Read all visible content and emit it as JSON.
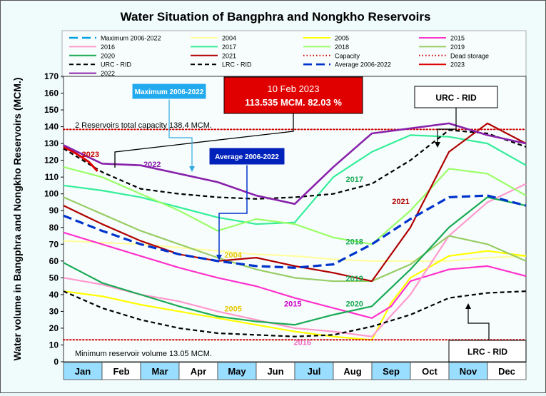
{
  "chart_data": {
    "type": "line",
    "title": "Water Situation of Bangphra and Nongkho Reservoirs",
    "xlabel": "",
    "ylabel": "Water volume in Bangphra and Nongkho Reservoirs (MCM.)",
    "ylim": [
      0,
      170
    ],
    "yticks": [
      0,
      10,
      20,
      30,
      40,
      50,
      60,
      70,
      80,
      90,
      100,
      110,
      120,
      130,
      140,
      150,
      160,
      170
    ],
    "categories": [
      "Jan",
      "Feb",
      "Mar",
      "Apr",
      "May",
      "Jun",
      "Jul",
      "Aug",
      "Sep",
      "Oct",
      "Nov",
      "Dec"
    ],
    "grid": false,
    "series": [
      {
        "name": "Maximum 2006-2022",
        "color": "#00a0e0",
        "style": "longdash",
        "legend_line": true,
        "x": [
          0
        ],
        "y": [
          0
        ]
      },
      {
        "name": "2004",
        "color": "#ffffa0",
        "style": "solid",
        "x": [
          0,
          1,
          2,
          3,
          4,
          5,
          6,
          7,
          8,
          9,
          10,
          11,
          12
        ],
        "y": [
          72,
          71,
          70,
          68,
          66,
          64,
          63,
          61,
          60,
          60,
          60,
          62,
          63
        ]
      },
      {
        "name": "2005",
        "color": "#ffff00",
        "style": "solid",
        "x": [
          0,
          1,
          2,
          3,
          4,
          5,
          6,
          7,
          8,
          8.5,
          9,
          10,
          11,
          12
        ],
        "y": [
          42,
          39,
          34,
          30,
          26,
          22,
          18,
          15,
          13,
          35,
          50,
          63,
          66,
          63
        ]
      },
      {
        "name": "2015",
        "color": "#ff33cc",
        "style": "solid",
        "x": [
          0,
          1,
          2,
          3,
          4,
          5,
          6,
          7,
          8,
          8.5,
          9,
          10,
          11,
          12
        ],
        "y": [
          77,
          70,
          63,
          56,
          50,
          45,
          38,
          32,
          26,
          33,
          48,
          55,
          57,
          51
        ]
      },
      {
        "name": "2016",
        "color": "#ff99cc",
        "style": "solid",
        "x": [
          0,
          1,
          2,
          3,
          4,
          5,
          6,
          7,
          8,
          9,
          10,
          11,
          12
        ],
        "y": [
          50,
          46,
          40,
          36,
          30,
          25,
          20,
          18,
          15,
          40,
          75,
          95,
          106
        ]
      },
      {
        "name": "2017",
        "color": "#33ee99",
        "style": "solid",
        "x": [
          0,
          1,
          2,
          3,
          4,
          5,
          6,
          7,
          8,
          9,
          10,
          11,
          12
        ],
        "y": [
          105,
          102,
          98,
          92,
          86,
          82,
          83,
          110,
          125,
          135,
          134,
          130,
          117
        ]
      },
      {
        "name": "2018",
        "color": "#99ff66",
        "style": "solid",
        "x": [
          0,
          1,
          2,
          3,
          4,
          5,
          6,
          7,
          8,
          9,
          10,
          11,
          12
        ],
        "y": [
          116,
          110,
          100,
          90,
          78,
          85,
          82,
          74,
          70,
          90,
          115,
          112,
          99
        ]
      },
      {
        "name": "2019",
        "color": "#99cc66",
        "style": "solid",
        "x": [
          0,
          1,
          2,
          3,
          4,
          5,
          6,
          7,
          8,
          9,
          10,
          11,
          12
        ],
        "y": [
          98,
          88,
          78,
          70,
          62,
          55,
          50,
          48,
          48,
          58,
          75,
          70,
          60
        ]
      },
      {
        "name": "2020",
        "color": "#1aaa55",
        "style": "solid",
        "x": [
          0,
          1,
          2,
          3,
          4,
          5,
          6,
          7,
          8,
          9,
          10,
          11,
          12
        ],
        "y": [
          59,
          47,
          40,
          33,
          27,
          24,
          22,
          28,
          33,
          55,
          80,
          98,
          93
        ]
      },
      {
        "name": "2021",
        "color": "#b00000",
        "style": "solid",
        "x": [
          0,
          1,
          2,
          3,
          4,
          5,
          6,
          7,
          8,
          9,
          10,
          11,
          12
        ],
        "y": [
          93,
          82,
          72,
          64,
          60,
          62,
          57,
          53,
          48,
          80,
          125,
          142,
          130
        ]
      },
      {
        "name": "Capacity",
        "color": "#cc0000",
        "style": "dotted",
        "x": [
          0,
          12
        ],
        "y": [
          138.4,
          138.4
        ]
      },
      {
        "name": "Dead storage",
        "color": "#cc0000",
        "style": "dotted",
        "x": [
          0,
          12
        ],
        "y": [
          13.05,
          13.05
        ]
      },
      {
        "name": "URC - RID",
        "color": "#000000",
        "style": "dash",
        "x": [
          0,
          1,
          2,
          3,
          4,
          5,
          6,
          7,
          8,
          9,
          10,
          11,
          12
        ],
        "y": [
          127,
          113,
          103,
          100,
          98,
          97,
          98,
          100,
          106,
          120,
          138,
          136,
          128
        ]
      },
      {
        "name": "LRC - RID",
        "color": "#000000",
        "style": "dash",
        "x": [
          0,
          1,
          2,
          3,
          4,
          5,
          6,
          7,
          8,
          9,
          10,
          11,
          12
        ],
        "y": [
          42,
          32,
          25,
          20,
          17,
          16,
          15,
          16,
          21,
          28,
          38,
          41,
          42
        ]
      },
      {
        "name": "Average 2006-2022",
        "color": "#0033cc",
        "style": "longdash",
        "x": [
          0,
          1,
          2,
          3,
          4,
          5,
          6,
          7,
          8,
          9,
          10,
          11,
          12
        ],
        "y": [
          87,
          78,
          70,
          64,
          60,
          57,
          56,
          58,
          70,
          85,
          98,
          99,
          93
        ]
      },
      {
        "name": "2023",
        "color": "#dd0000",
        "style": "solid",
        "x": [
          0,
          0.33,
          0.66,
          0.88
        ],
        "y": [
          128,
          124,
          119,
          113.5
        ]
      },
      {
        "name": "2022",
        "color": "#8822aa",
        "style": "solid",
        "x": [
          0,
          1,
          2,
          3,
          4,
          5,
          6,
          7,
          8,
          9,
          10,
          11,
          12
        ],
        "y": [
          129,
          118,
          117,
          112,
          107,
          99,
          94,
          116,
          136,
          139,
          142,
          135,
          130
        ]
      }
    ],
    "legend": {
      "placement": "top",
      "rows": [
        [
          "Maximum 2006-2022",
          "2004",
          "2005",
          "2015"
        ],
        [
          "2016",
          "2017",
          "2018",
          "2019"
        ],
        [
          "2020",
          "2021",
          "Capacity",
          "Dead storage"
        ],
        [
          "URC - RID",
          "LRC - RID",
          "Average 2006-2022",
          "2023"
        ],
        [
          "2022"
        ]
      ]
    },
    "annotations": {
      "current_date": "10 Feb 2023",
      "current_value": "113.535 MCM. 82.03 %",
      "max_callout": "Maximum 2006-2022",
      "avg_callout": "Average 2006-2022",
      "urc_callout": "URC - RID",
      "lrc_callout": "LRC - RID",
      "capacity_note": "2 Reservoirs total capacity 138.4 MCM.",
      "min_note": "Minimum reservoir volume 13.05 MCM."
    },
    "series_labels": [
      {
        "text": "2023",
        "color": "#cc0000",
        "x": 0.7,
        "y": 122
      },
      {
        "text": "2022",
        "color": "#8822aa",
        "x": 2.3,
        "y": 116
      },
      {
        "text": "2017",
        "color": "#1aaa55",
        "x": 7.55,
        "y": 107
      },
      {
        "text": "2021",
        "color": "#b00000",
        "x": 8.75,
        "y": 94
      },
      {
        "text": "2018",
        "color": "#1aaa55",
        "x": 7.55,
        "y": 70
      },
      {
        "text": "2004",
        "color": "#e6c800",
        "x": 4.4,
        "y": 62
      },
      {
        "text": "2019",
        "color": "#1aaa55",
        "x": 7.55,
        "y": 48
      },
      {
        "text": "2005",
        "color": "#e6c800",
        "x": 4.4,
        "y": 30
      },
      {
        "text": "2015",
        "color": "#cc00cc",
        "x": 5.95,
        "y": 33
      },
      {
        "text": "2020",
        "color": "#1aaa55",
        "x": 7.55,
        "y": 33
      },
      {
        "text": "2016",
        "color": "#ee66bb",
        "x": 6.2,
        "y": 10
      }
    ]
  }
}
